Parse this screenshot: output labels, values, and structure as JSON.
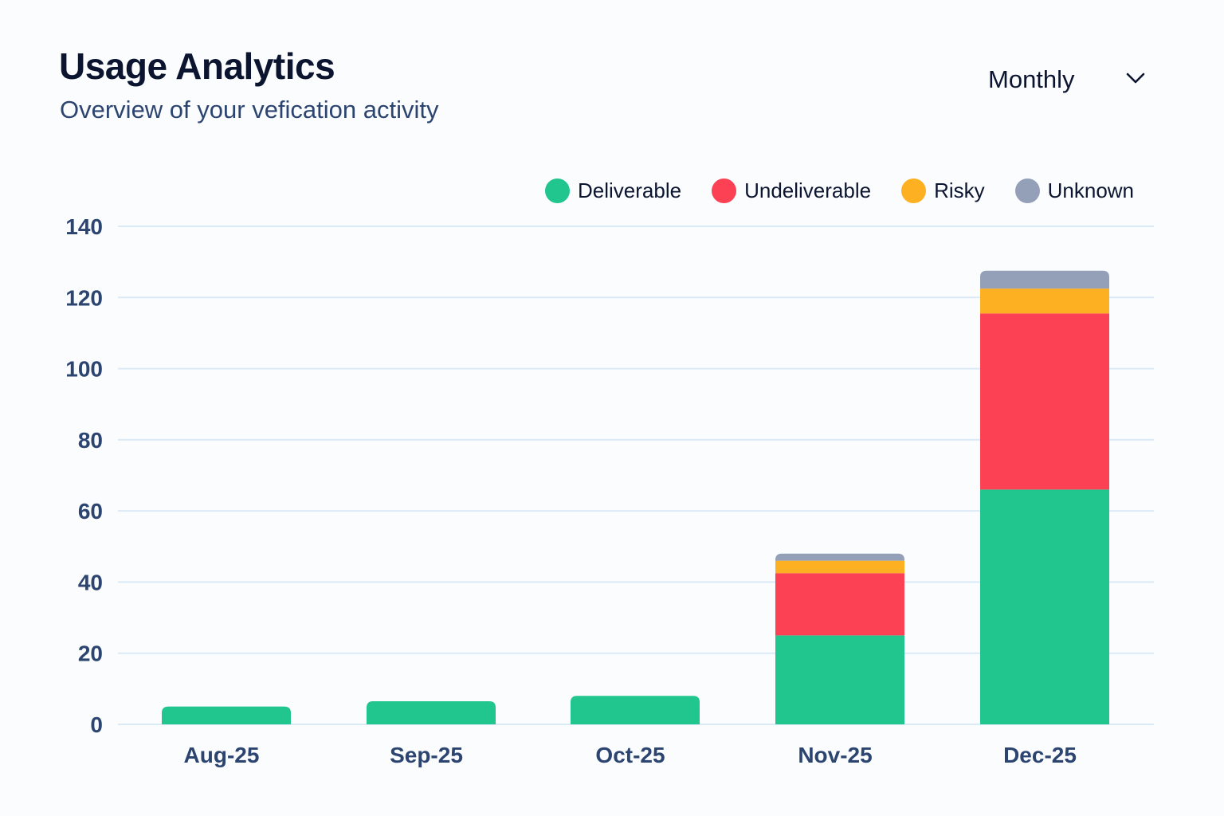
{
  "header": {
    "title": "Usage Analytics",
    "subtitle": "Overview of your vefication activity"
  },
  "period_select": {
    "selected": "Monthly",
    "icon": "chevron-down-icon"
  },
  "chart_data": {
    "type": "bar",
    "stacked": true,
    "title": "",
    "xlabel": "",
    "ylabel": "",
    "ylim": [
      0,
      140
    ],
    "yticks": [
      0,
      20,
      40,
      60,
      80,
      100,
      120,
      140
    ],
    "grid": true,
    "legend_position": "top-right",
    "categories": [
      "Aug-25",
      "Sep-25",
      "Oct-25",
      "Nov-25",
      "Dec-25"
    ],
    "series": [
      {
        "name": "Deliverable",
        "color": "#20c68d",
        "values": [
          5,
          6.5,
          8,
          25,
          66
        ]
      },
      {
        "name": "Undeliverable",
        "color": "#fd4154",
        "values": [
          0,
          0,
          0,
          17.5,
          49.5
        ]
      },
      {
        "name": "Risky",
        "color": "#fdb022",
        "values": [
          0,
          0,
          0,
          3.5,
          7
        ]
      },
      {
        "name": "Unknown",
        "color": "#94a0b8",
        "values": [
          0,
          0,
          0,
          2,
          5
        ]
      }
    ]
  }
}
